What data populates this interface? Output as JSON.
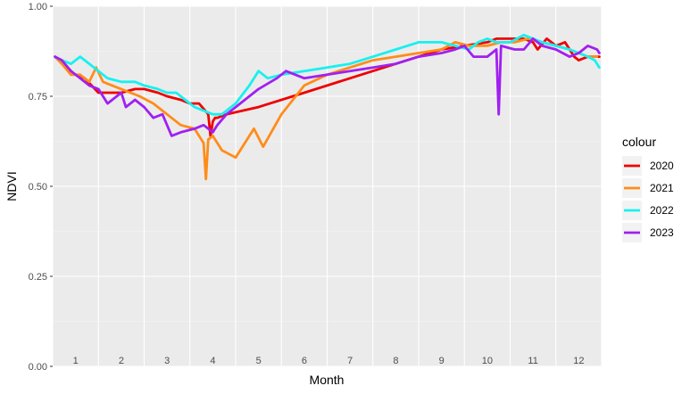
{
  "chart_data": {
    "type": "line",
    "xlabel": "Month",
    "ylabel": "NDVI",
    "xlim": [
      0.5,
      12.5
    ],
    "ylim": [
      0,
      1
    ],
    "x_ticks": [
      "1",
      "2",
      "3",
      "4",
      "5",
      "6",
      "7",
      "8",
      "9",
      "10",
      "11",
      "12"
    ],
    "y_ticks": [
      "0.00",
      "0.25",
      "0.50",
      "0.75",
      "1.00"
    ],
    "grid": true,
    "legend": {
      "title": "colour",
      "position": "right"
    },
    "series": [
      {
        "name": "2020",
        "color": "#ee0000",
        "x": [
          0.55,
          0.65,
          0.8,
          1.0,
          1.2,
          1.5,
          1.8,
          2.0,
          2.3,
          2.5,
          2.8,
          3.0,
          3.3,
          3.5,
          3.7,
          3.9,
          3.95,
          4.0,
          4.05,
          4.1,
          4.3,
          5.0,
          6.0,
          7.0,
          8.0,
          9.0,
          9.5,
          10.0,
          10.2,
          10.5,
          10.8,
          11.0,
          11.1,
          11.3,
          11.5,
          11.7,
          11.9,
          12.0,
          12.2,
          12.4,
          12.45
        ],
        "y": [
          0.86,
          0.85,
          0.83,
          0.81,
          0.8,
          0.76,
          0.76,
          0.76,
          0.77,
          0.77,
          0.76,
          0.75,
          0.74,
          0.73,
          0.73,
          0.7,
          0.64,
          0.68,
          0.69,
          0.69,
          0.7,
          0.72,
          0.76,
          0.8,
          0.84,
          0.88,
          0.89,
          0.9,
          0.91,
          0.91,
          0.91,
          0.9,
          0.88,
          0.91,
          0.89,
          0.9,
          0.86,
          0.85,
          0.86,
          0.86,
          0.86
        ]
      },
      {
        "name": "2021",
        "color": "#ff8c1a",
        "x": [
          0.55,
          0.7,
          0.9,
          1.1,
          1.3,
          1.45,
          1.6,
          1.8,
          2.0,
          2.2,
          2.4,
          2.7,
          3.0,
          3.3,
          3.6,
          3.8,
          3.85,
          3.9,
          4.0,
          4.2,
          4.5,
          4.8,
          4.9,
          5.1,
          5.5,
          6.0,
          6.5,
          7.0,
          7.5,
          8.0,
          8.5,
          9.0,
          9.3,
          9.6,
          10.0,
          10.3,
          10.6,
          10.9,
          11.2,
          11.5,
          11.8,
          12.0,
          12.2,
          12.4
        ],
        "y": [
          0.86,
          0.84,
          0.81,
          0.81,
          0.79,
          0.83,
          0.79,
          0.78,
          0.77,
          0.76,
          0.75,
          0.73,
          0.7,
          0.67,
          0.66,
          0.62,
          0.52,
          0.63,
          0.64,
          0.6,
          0.58,
          0.64,
          0.66,
          0.61,
          0.7,
          0.78,
          0.81,
          0.83,
          0.85,
          0.86,
          0.87,
          0.88,
          0.9,
          0.89,
          0.89,
          0.9,
          0.9,
          0.91,
          0.9,
          0.89,
          0.88,
          0.87,
          0.86,
          0.86
        ]
      },
      {
        "name": "2022",
        "color": "#18f0f0",
        "x": [
          0.55,
          0.7,
          0.9,
          1.1,
          1.3,
          1.5,
          1.7,
          2.0,
          2.3,
          2.5,
          2.8,
          3.0,
          3.2,
          3.4,
          3.6,
          3.8,
          4.0,
          4.2,
          4.5,
          4.8,
          5.0,
          5.2,
          5.5,
          6.0,
          6.5,
          7.0,
          7.5,
          8.0,
          8.5,
          9.0,
          9.3,
          9.6,
          9.8,
          10.0,
          10.2,
          10.5,
          10.8,
          11.0,
          11.2,
          11.5,
          11.8,
          12.0,
          12.2,
          12.35,
          12.45
        ],
        "y": [
          0.86,
          0.85,
          0.84,
          0.86,
          0.84,
          0.82,
          0.8,
          0.79,
          0.79,
          0.78,
          0.77,
          0.76,
          0.76,
          0.74,
          0.72,
          0.71,
          0.7,
          0.7,
          0.73,
          0.78,
          0.82,
          0.8,
          0.81,
          0.82,
          0.83,
          0.84,
          0.86,
          0.88,
          0.9,
          0.9,
          0.89,
          0.88,
          0.9,
          0.91,
          0.9,
          0.9,
          0.92,
          0.91,
          0.9,
          0.89,
          0.88,
          0.87,
          0.86,
          0.85,
          0.83
        ]
      },
      {
        "name": "2023",
        "color": "#a020f0",
        "x": [
          0.55,
          0.7,
          0.9,
          1.1,
          1.3,
          1.5,
          1.7,
          1.9,
          2.0,
          2.1,
          2.3,
          2.5,
          2.7,
          2.9,
          3.1,
          3.3,
          3.6,
          3.8,
          4.0,
          4.1,
          4.3,
          4.6,
          5.0,
          5.4,
          5.6,
          6.0,
          6.5,
          7.0,
          7.5,
          8.0,
          8.5,
          9.0,
          9.3,
          9.5,
          9.7,
          10.0,
          10.2,
          10.25,
          10.3,
          10.6,
          10.8,
          11.0,
          11.2,
          11.5,
          11.8,
          12.0,
          12.2,
          12.4,
          12.45
        ],
        "y": [
          0.86,
          0.85,
          0.82,
          0.8,
          0.78,
          0.77,
          0.73,
          0.75,
          0.76,
          0.72,
          0.74,
          0.72,
          0.69,
          0.7,
          0.64,
          0.65,
          0.66,
          0.67,
          0.65,
          0.67,
          0.7,
          0.73,
          0.77,
          0.8,
          0.82,
          0.8,
          0.81,
          0.82,
          0.83,
          0.84,
          0.86,
          0.87,
          0.88,
          0.89,
          0.86,
          0.86,
          0.88,
          0.7,
          0.89,
          0.88,
          0.88,
          0.91,
          0.89,
          0.88,
          0.86,
          0.87,
          0.89,
          0.88,
          0.87
        ]
      }
    ]
  }
}
